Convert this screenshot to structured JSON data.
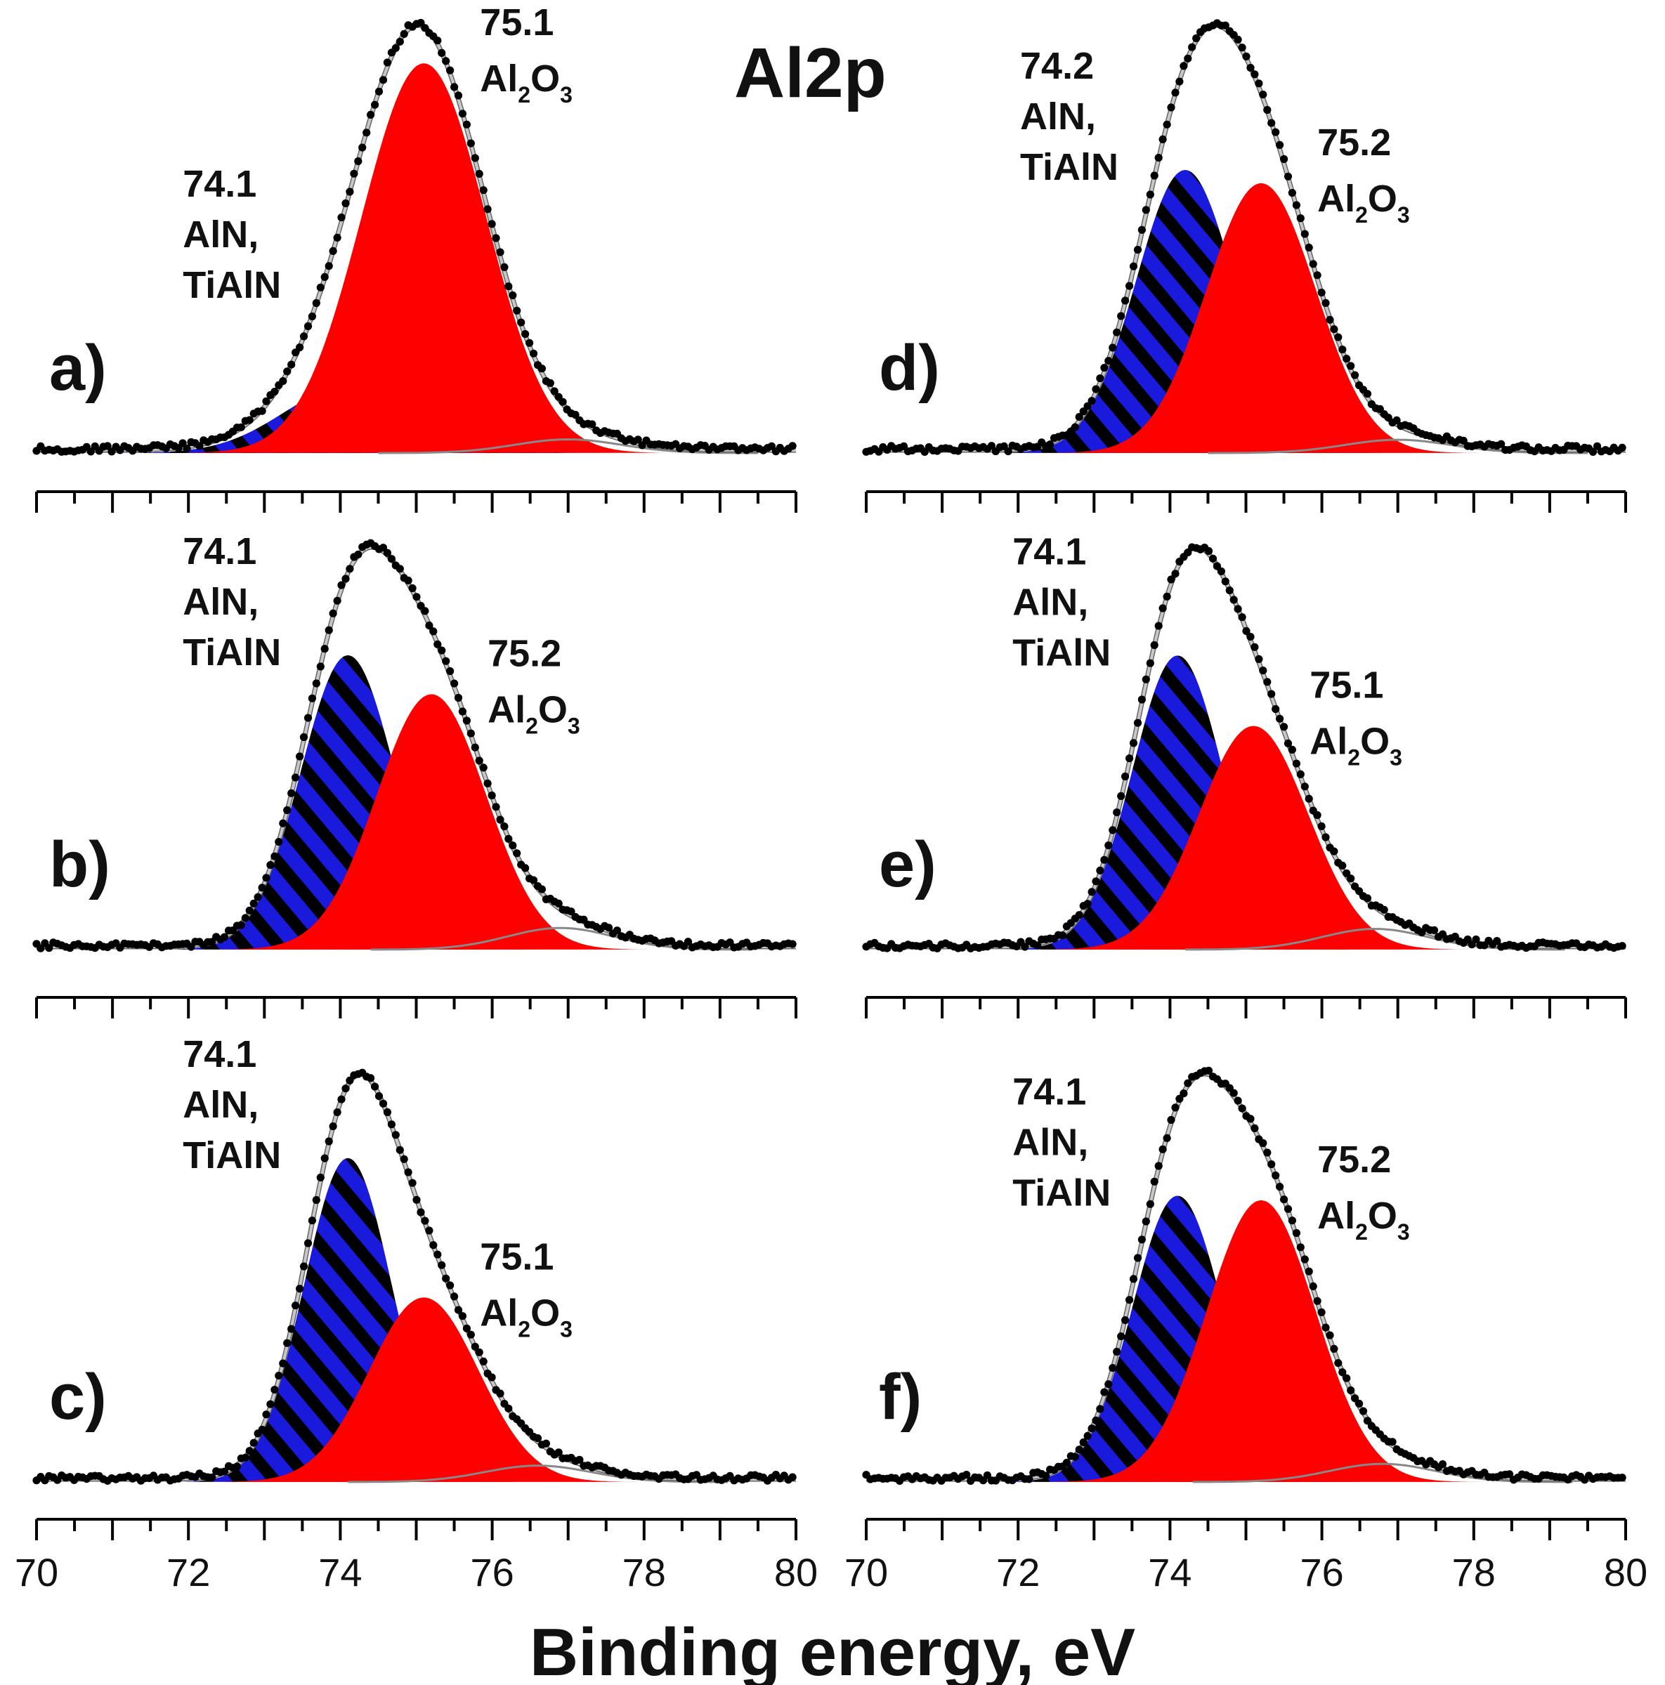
{
  "chart_data": {
    "type": "line",
    "title": "Al2p",
    "xlabel": "Binding energy, eV",
    "ylabel": "",
    "xlim": [
      70,
      80
    ],
    "x_ticks": [
      70,
      72,
      74,
      76,
      78,
      80
    ],
    "colors": {
      "AlN": "#1a1adc",
      "Al2O3": "#ff0000",
      "stripe": "#000000",
      "envelope": "#c8c8c8",
      "data": "#000000",
      "background_peak": "#888888"
    },
    "panels": [
      {
        "label": "a)",
        "column": "left",
        "row": 0,
        "peaks": [
          {
            "component": "AlN",
            "position": 74.1,
            "energy_label": "74.1",
            "species_lines": [
              "AlN,",
              "TiAlN"
            ],
            "height": 0.17,
            "sigma": 0.85
          },
          {
            "component": "Al2O3",
            "position": 75.1,
            "energy_label": "75.1",
            "height": 1.0,
            "sigma": 0.82
          }
        ],
        "tail": {
          "position": 77.0,
          "height": 0.035
        }
      },
      {
        "label": "b)",
        "column": "left",
        "row": 1,
        "peaks": [
          {
            "component": "AlN",
            "position": 74.1,
            "energy_label": "74.1",
            "species_lines": [
              "AlN,",
              "TiAlN"
            ],
            "height": 0.68,
            "sigma": 0.62
          },
          {
            "component": "Al2O3",
            "position": 75.2,
            "energy_label": "75.2",
            "height": 0.59,
            "sigma": 0.72
          }
        ],
        "tail": {
          "position": 76.9,
          "height": 0.05
        }
      },
      {
        "label": "c)",
        "column": "left",
        "row": 2,
        "peaks": [
          {
            "component": "AlN",
            "position": 74.1,
            "energy_label": "74.1",
            "species_lines": [
              "AlN,",
              "TiAlN"
            ],
            "height": 0.79,
            "sigma": 0.58
          },
          {
            "component": "Al2O3",
            "position": 75.1,
            "energy_label": "75.1",
            "height": 0.45,
            "sigma": 0.72
          }
        ],
        "tail": {
          "position": 76.6,
          "height": 0.04
        }
      },
      {
        "label": "d)",
        "column": "right",
        "row": 0,
        "peaks": [
          {
            "component": "AlN",
            "position": 74.2,
            "energy_label": "74.2",
            "species_lines": [
              "AlN,",
              "TiAlN"
            ],
            "height": 0.64,
            "sigma": 0.65
          },
          {
            "component": "Al2O3",
            "position": 75.2,
            "energy_label": "75.2",
            "height": 0.61,
            "sigma": 0.72
          }
        ],
        "tail": {
          "position": 77.0,
          "height": 0.03
        }
      },
      {
        "label": "e)",
        "column": "right",
        "row": 1,
        "peaks": [
          {
            "component": "AlN",
            "position": 74.1,
            "energy_label": "74.1",
            "species_lines": [
              "AlN,",
              "TiAlN"
            ],
            "height": 0.71,
            "sigma": 0.6
          },
          {
            "component": "Al2O3",
            "position": 75.1,
            "energy_label": "75.1",
            "height": 0.54,
            "sigma": 0.72
          }
        ],
        "tail": {
          "position": 76.7,
          "height": 0.05
        }
      },
      {
        "label": "f)",
        "column": "right",
        "row": 2,
        "peaks": [
          {
            "component": "AlN",
            "position": 74.1,
            "energy_label": "74.1",
            "species_lines": [
              "AlN,",
              "TiAlN"
            ],
            "height": 0.63,
            "sigma": 0.6
          },
          {
            "component": "Al2O3",
            "position": 75.2,
            "energy_label": "75.2",
            "height": 0.62,
            "sigma": 0.72
          }
        ],
        "tail": {
          "position": 76.8,
          "height": 0.04
        }
      }
    ]
  }
}
